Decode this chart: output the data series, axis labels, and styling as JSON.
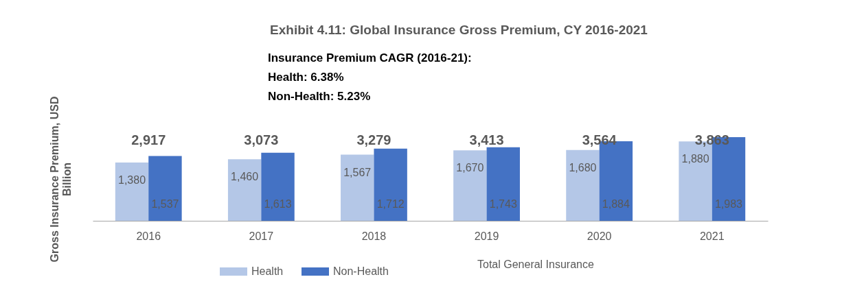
{
  "chart_data": {
    "type": "bar",
    "title": "Exhibit 4.11: Global Insurance Gross Premium, CY 2016-2021",
    "ylabel": "Gross Insurance Premium, USD Billion",
    "annotations": [
      "Insurance Premium CAGR (2016-21):",
      "Health: 6.38%",
      "Non-Health: 5.23%",
      "Total General Insurance"
    ],
    "categories": [
      "2016",
      "2017",
      "2018",
      "2019",
      "2020",
      "2021"
    ],
    "series": [
      {
        "name": "Health",
        "color": "#b4c7e7",
        "values": [
          1380,
          1460,
          1567,
          1670,
          1680,
          1880
        ],
        "value_labels": [
          "1,380",
          "1,460",
          "1,567",
          "1,670",
          "1,680",
          "1,880"
        ]
      },
      {
        "name": "Non-Health",
        "color": "#4472c4",
        "values": [
          1537,
          1613,
          1712,
          1743,
          1884,
          1983
        ],
        "value_labels": [
          "1,537",
          "1,613",
          "1,712",
          "1,743",
          "1,884",
          "1,983"
        ]
      }
    ],
    "totals": [
      "2,917",
      "3,073",
      "3,279",
      "3,413",
      "3,564",
      "3,863"
    ],
    "tick_labels": "x",
    "legend": "bottom"
  }
}
